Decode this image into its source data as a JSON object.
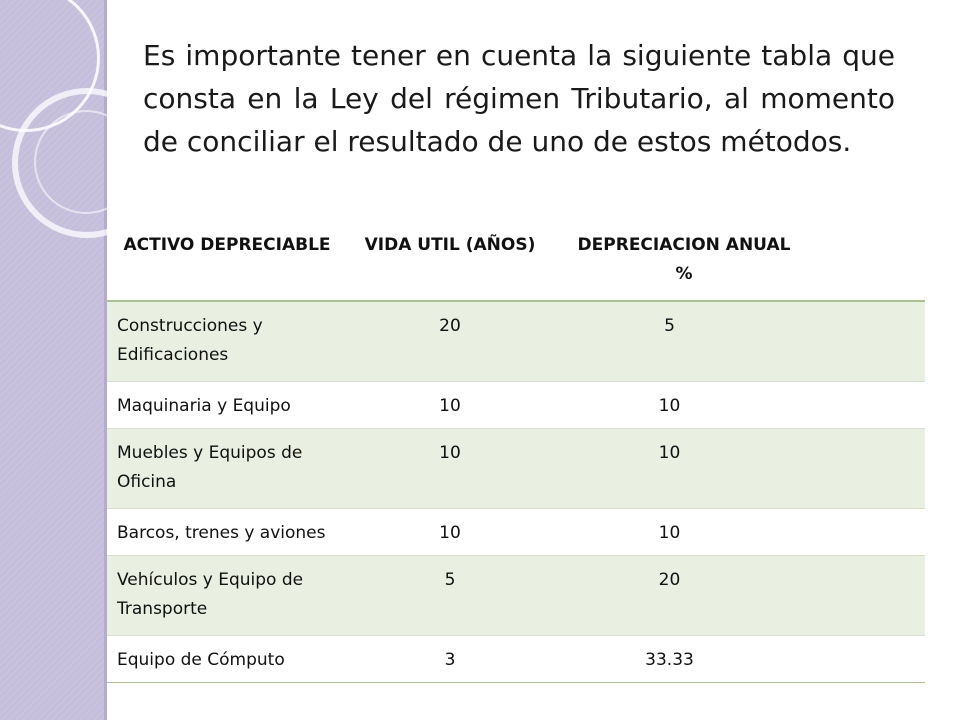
{
  "slide": {
    "heading": "Es importante tener en cuenta la siguiente tabla que consta en la Ley del régimen Tributario, al momento de conciliar el resultado de uno de estos métodos."
  },
  "table": {
    "headers": [
      "ACTIVO DEPRECIABLE",
      "VIDA UTIL (AÑOS)",
      "DEPRECIACION ANUAL %"
    ],
    "rows": [
      {
        "activo": "Construcciones y Edificaciones",
        "vida_util": "20",
        "depreciacion": "5"
      },
      {
        "activo": "Maquinaria y Equipo",
        "vida_util": "10",
        "depreciacion": "10"
      },
      {
        "activo": "Muebles y Equipos de Oficina",
        "vida_util": "10",
        "depreciacion": "10"
      },
      {
        "activo": "Barcos, trenes y aviones",
        "vida_util": "10",
        "depreciacion": "10"
      },
      {
        "activo": "Vehículos y Equipo de Transporte",
        "vida_util": "5",
        "depreciacion": "20"
      },
      {
        "activo": "Equipo de Cómputo",
        "vida_util": "3",
        "depreciacion": "33.33"
      }
    ]
  },
  "colors": {
    "side_band": "#c6bfdc",
    "row_shade": "#e9efe1",
    "header_rule": "#a9c38c"
  }
}
